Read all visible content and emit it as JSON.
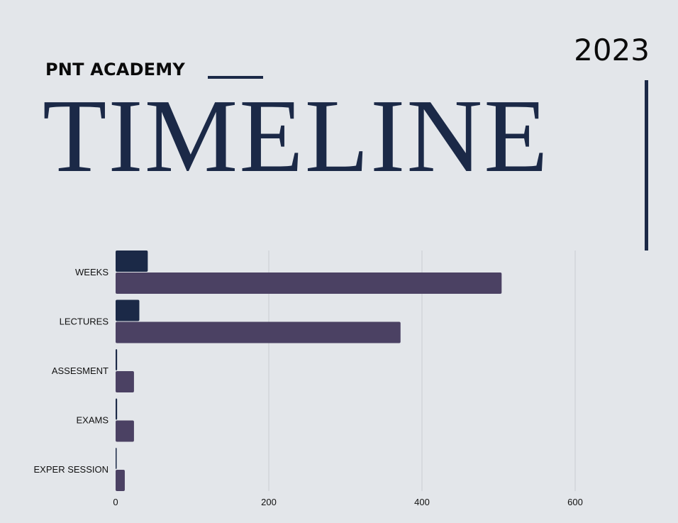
{
  "header": {
    "academy": "PNT ACADEMY",
    "year": "2023",
    "title": "TIMELINE"
  },
  "colors": {
    "background": "#e3e6ea",
    "navy": "#1b2947",
    "purple": "#4b4163",
    "grid": "#c9ccd1",
    "text": "#111111"
  },
  "chart_data": {
    "type": "bar",
    "orientation": "horizontal",
    "categories": [
      "WEEKS",
      "LECTURES",
      "ASSESMENT",
      "EXAMS",
      "EXPER SESSION"
    ],
    "series": [
      {
        "color": "#1b2947",
        "values": [
          42,
          31,
          2,
          2,
          1
        ]
      },
      {
        "color": "#4b4163",
        "values": [
          504,
          372,
          24,
          24,
          12
        ]
      }
    ],
    "xlim": [
      0,
      700
    ],
    "xticks": [
      0,
      200,
      400,
      600
    ],
    "grid": true,
    "legend": "none"
  }
}
